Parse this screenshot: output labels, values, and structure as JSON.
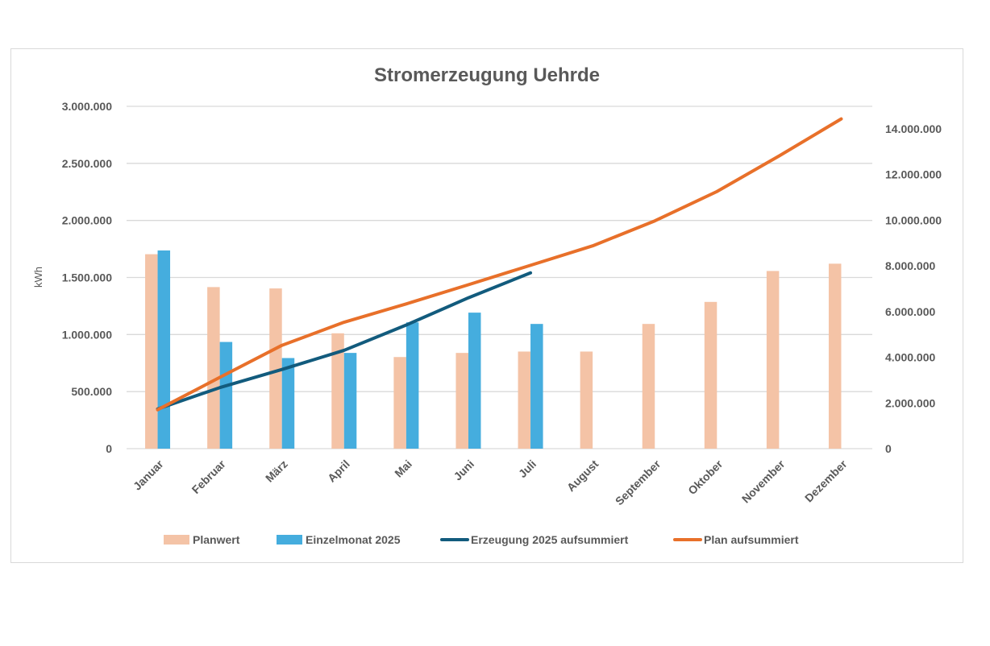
{
  "chart_data": {
    "type": "bar+line",
    "title": "Stromerzeugung Uehrde",
    "ylabel": "kWh",
    "y2label": "",
    "categories": [
      "Januar",
      "Februar",
      "März",
      "April",
      "Mai",
      "Juni",
      "Juli",
      "August",
      "September",
      "Oktober",
      "November",
      "Dezember"
    ],
    "ylim": [
      0,
      3000000
    ],
    "yticks": [
      "0",
      "500.000",
      "1.000.000",
      "1.500.000",
      "2.000.000",
      "2.500.000",
      "3.000.000"
    ],
    "y2lim": [
      0,
      14000000
    ],
    "y2ticks": [
      "0",
      "2.000.000",
      "4.000.000",
      "6.000.000",
      "8.000.000",
      "10.000.000",
      "12.000.000",
      "14.000.000"
    ],
    "grid": true,
    "legend_position": "bottom",
    "series": [
      {
        "name": "Planwert",
        "kind": "bar",
        "axis": "left",
        "color": "#F4C3A6",
        "values": [
          1704000,
          1416000,
          1404000,
          1011000,
          803000,
          839000,
          851000,
          851000,
          1093000,
          1286000,
          1557000,
          1621000
        ]
      },
      {
        "name": "Einzelmonat 2025",
        "kind": "bar",
        "axis": "left",
        "color": "#45ADDE",
        "values": [
          1737000,
          935000,
          794000,
          839000,
          1107000,
          1192000,
          1093000,
          null,
          null,
          null,
          null,
          null
        ]
      },
      {
        "name": "Erzeugung 2025 aufsummiert",
        "kind": "line",
        "axis": "right",
        "color": "#125B7D",
        "values": [
          1737000,
          2672000,
          3466000,
          4305000,
          5412000,
          6604000,
          7697000,
          null,
          null,
          null,
          null,
          null
        ]
      },
      {
        "name": "Plan aufsummiert",
        "kind": "line",
        "axis": "right",
        "color": "#E8702A",
        "values": [
          1704000,
          3120000,
          4524000,
          5535000,
          6338000,
          7177000,
          8028000,
          8879000,
          9972000,
          11258000,
          12815000,
          14436000
        ]
      }
    ]
  }
}
